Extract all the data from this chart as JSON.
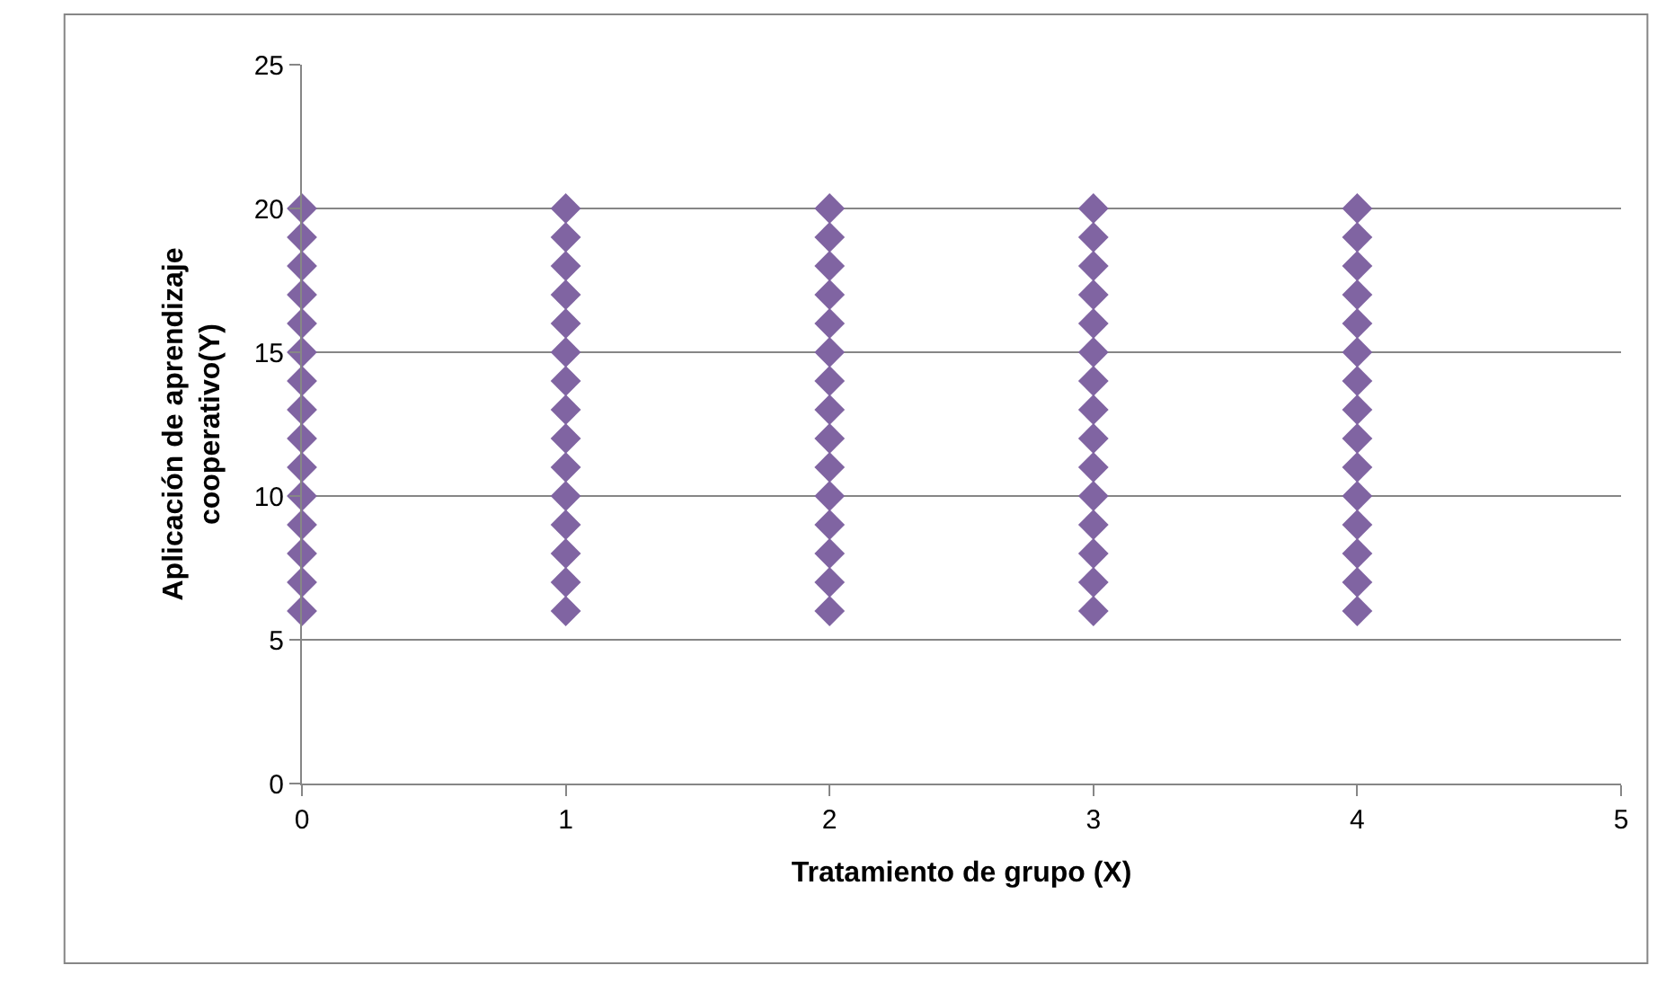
{
  "chart_data": {
    "type": "scatter",
    "xlabel": "Tratamiento de grupo (X)",
    "ylabel": "Aplicación de aprendizaje cooperativo(Y)",
    "x": [
      0,
      0,
      0,
      0,
      0,
      0,
      0,
      0,
      0,
      0,
      0,
      0,
      0,
      0,
      0,
      1,
      1,
      1,
      1,
      1,
      1,
      1,
      1,
      1,
      1,
      1,
      1,
      1,
      1,
      1,
      2,
      2,
      2,
      2,
      2,
      2,
      2,
      2,
      2,
      2,
      2,
      2,
      2,
      2,
      2,
      3,
      3,
      3,
      3,
      3,
      3,
      3,
      3,
      3,
      3,
      3,
      3,
      3,
      3,
      3,
      4,
      4,
      4,
      4,
      4,
      4,
      4,
      4,
      4,
      4,
      4,
      4,
      4,
      4,
      4
    ],
    "series": [
      {
        "color": "#8064a2",
        "values": [
          6,
          7,
          8,
          9,
          10,
          11,
          12,
          13,
          14,
          15,
          16,
          17,
          18,
          19,
          20,
          6,
          7,
          8,
          9,
          10,
          11,
          12,
          13,
          14,
          15,
          16,
          17,
          18,
          19,
          20,
          6,
          7,
          8,
          9,
          10,
          11,
          12,
          13,
          14,
          15,
          16,
          17,
          18,
          19,
          20,
          6,
          7,
          8,
          9,
          10,
          11,
          12,
          13,
          14,
          15,
          16,
          17,
          18,
          19,
          20,
          6,
          7,
          8,
          9,
          10,
          11,
          12,
          13,
          14,
          15,
          16,
          17,
          18,
          19,
          20
        ]
      }
    ],
    "xlim": [
      0,
      5
    ],
    "xticks": [
      0,
      1,
      2,
      3,
      4,
      5
    ],
    "ylim": [
      0,
      25
    ],
    "yticks": [
      0,
      5,
      10,
      15,
      20,
      25
    ],
    "grid": "y",
    "marker": "diamond"
  }
}
